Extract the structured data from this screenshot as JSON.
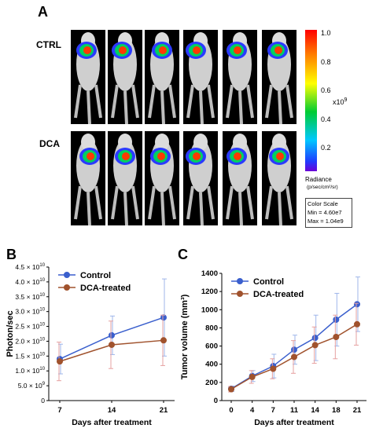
{
  "panel_a": {
    "letter": "A",
    "row_labels": [
      "CTRL",
      "DCA"
    ],
    "colorbar": {
      "ticks": [
        "1.0",
        "0.8",
        "0.6",
        "0.4",
        "0.2"
      ],
      "multiplier": "x10",
      "multiplier_exp": "9",
      "title": "Radiance",
      "units": "(p/sec/cm²/sr)"
    },
    "color_scale": {
      "title": "Color Scale",
      "min": "Min = 4.60e7",
      "max": "Max = 1.04e9"
    }
  },
  "chart_data": [
    {
      "panel_letter": "B",
      "type": "line",
      "x": [
        "7",
        "14",
        "21"
      ],
      "xlabel": "Days after treatment",
      "ylabel": "Photon/sec",
      "ylim": [
        0,
        45000000000.0
      ],
      "yticks": [
        {
          "value": 0,
          "mant": "0",
          "exp": ""
        },
        {
          "value": 5000000000.0,
          "mant": "5.0 × 10",
          "exp": "9"
        },
        {
          "value": 10000000000.0,
          "mant": "1.0 × 10",
          "exp": "10"
        },
        {
          "value": 15000000000.0,
          "mant": "1.5 × 10",
          "exp": "10"
        },
        {
          "value": 20000000000.0,
          "mant": "2.0 × 10",
          "exp": "10"
        },
        {
          "value": 25000000000.0,
          "mant": "2.5 × 10",
          "exp": "10"
        },
        {
          "value": 30000000000.0,
          "mant": "3.0 × 10",
          "exp": "10"
        },
        {
          "value": 35000000000.0,
          "mant": "3.5 × 10",
          "exp": "10"
        },
        {
          "value": 40000000000.0,
          "mant": "4.0 × 10",
          "exp": "10"
        },
        {
          "value": 45000000000.0,
          "mant": "4.5 × 10",
          "exp": "10"
        }
      ],
      "legend_position": "top-left",
      "series": [
        {
          "name": "Control",
          "color": "#3a5fcd",
          "err_color": "#9fb6ea",
          "values": [
            14000000000.0,
            22000000000.0,
            28000000000.0
          ],
          "err": [
            5000000000.0,
            6500000000.0,
            13000000000.0
          ]
        },
        {
          "name": "DCA-treated",
          "color": "#a0522d",
          "err_color": "#e6a0a0",
          "values": [
            13200000000.0,
            18800000000.0,
            20300000000.0
          ],
          "err": [
            6500000000.0,
            8000000000.0,
            8500000000.0
          ]
        }
      ]
    },
    {
      "panel_letter": "C",
      "type": "line",
      "x": [
        "0",
        "4",
        "7",
        "11",
        "14",
        "18",
        "21"
      ],
      "xlabel": "Days after treatment",
      "ylabel": "Tumor volume (mm³)",
      "ylim": [
        0,
        1400
      ],
      "yticks": [
        {
          "value": 0,
          "mant": "0",
          "exp": ""
        },
        {
          "value": 200,
          "mant": "200",
          "exp": ""
        },
        {
          "value": 400,
          "mant": "400",
          "exp": ""
        },
        {
          "value": 600,
          "mant": "600",
          "exp": ""
        },
        {
          "value": 800,
          "mant": "800",
          "exp": ""
        },
        {
          "value": 1000,
          "mant": "1000",
          "exp": ""
        },
        {
          "value": 1200,
          "mant": "1200",
          "exp": ""
        },
        {
          "value": 1400,
          "mant": "1400",
          "exp": ""
        }
      ],
      "legend_position": "top-left",
      "series": [
        {
          "name": "Control",
          "color": "#3a5fcd",
          "err_color": "#9fb6ea",
          "values": [
            130,
            270,
            380,
            560,
            690,
            890,
            1060
          ],
          "err": [
            30,
            60,
            130,
            160,
            250,
            290,
            300
          ]
        },
        {
          "name": "DCA-treated",
          "color": "#a0522d",
          "err_color": "#e6a0a0",
          "values": [
            125,
            260,
            350,
            480,
            610,
            700,
            840
          ],
          "err": [
            30,
            70,
            110,
            180,
            200,
            240,
            230
          ]
        }
      ]
    }
  ]
}
